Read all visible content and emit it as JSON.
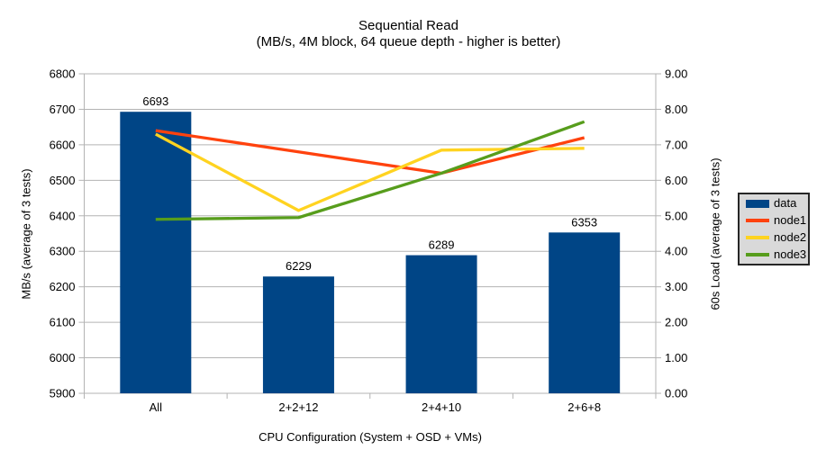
{
  "title": "Sequential Read",
  "subtitle": "(MB/s, 4M block, 64 queue depth - higher is better)",
  "colors": {
    "bar": "#004586",
    "node1": "#ff420e",
    "node2": "#ffd320",
    "node3": "#579d1c",
    "grid": "#b3b3b3",
    "axis": "#b3b3b3",
    "text": "#000000",
    "legend_bg": "#d9d9d9",
    "legend_border": "#262626"
  },
  "chart_data": {
    "type": "bar",
    "subtype": "combo-bar-line-dual-axis",
    "title": "Sequential Read",
    "subtitle": "(MB/s, 4M block, 64 queue depth - higher is better)",
    "categories": [
      "All",
      "2+2+12",
      "2+4+10",
      "2+6+8"
    ],
    "bar_series": {
      "name": "data",
      "axis": "left",
      "color": "#004586",
      "values": [
        6693,
        6229,
        6289,
        6353
      ],
      "data_labels": [
        "6693",
        "6229",
        "6289",
        "6353"
      ]
    },
    "line_series": [
      {
        "name": "node1",
        "axis": "right",
        "color": "#ff420e",
        "values": [
          7.4,
          6.8,
          6.2,
          7.2
        ]
      },
      {
        "name": "node2",
        "axis": "right",
        "color": "#ffd320",
        "values": [
          7.3,
          5.15,
          6.85,
          6.9
        ]
      },
      {
        "name": "node3",
        "axis": "right",
        "color": "#579d1c",
        "values": [
          4.9,
          4.95,
          6.2,
          7.65
        ]
      }
    ],
    "left_axis": {
      "title": "MB/s (average of 3 tests)",
      "min": 5900,
      "max": 6800,
      "step": 100,
      "tick_labels": [
        "5900",
        "6000",
        "6100",
        "6200",
        "6300",
        "6400",
        "6500",
        "6600",
        "6700",
        "6800"
      ]
    },
    "right_axis": {
      "title": "60s Load (average of 3 tests)",
      "min": 0,
      "max": 9,
      "step": 1,
      "tick_labels": [
        "0.00",
        "1.00",
        "2.00",
        "3.00",
        "4.00",
        "5.00",
        "6.00",
        "7.00",
        "8.00",
        "9.00"
      ]
    },
    "x_axis": {
      "title": "CPU Configuration (System + OSD + VMs)"
    },
    "grid": "horizontal",
    "legend_position": "right"
  },
  "legend": {
    "items": [
      {
        "label": "data",
        "color": "#004586",
        "type": "bar"
      },
      {
        "label": "node1",
        "color": "#ff420e",
        "type": "line"
      },
      {
        "label": "node2",
        "color": "#ffd320",
        "type": "line"
      },
      {
        "label": "node3",
        "color": "#579d1c",
        "type": "line"
      }
    ]
  }
}
